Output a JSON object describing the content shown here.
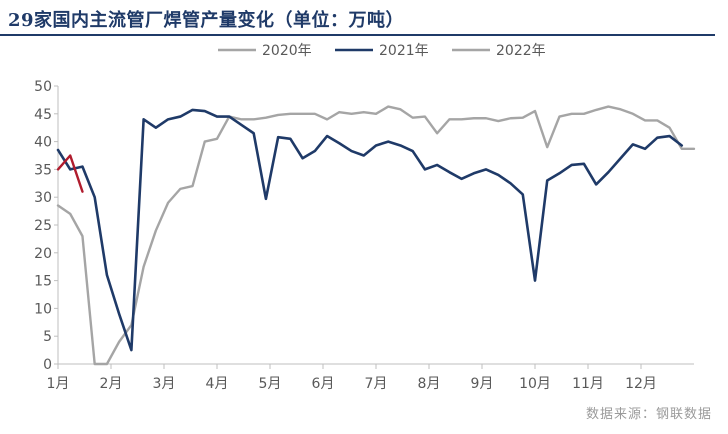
{
  "title": "29家国内主流管厂焊管产量变化（单位：万吨）",
  "source": "数据来源：钢联数据",
  "chart_data": {
    "type": "line",
    "ylim": [
      0,
      50
    ],
    "y_ticks": [
      "0",
      "5",
      "10",
      "15",
      "20",
      "25",
      "30",
      "35",
      "40",
      "45",
      "50"
    ],
    "x_labels": [
      "1月",
      "2月",
      "3月",
      "4月",
      "5月",
      "6月",
      "7月",
      "8月",
      "9月",
      "10月",
      "11月",
      "12月"
    ],
    "legend_position": "top",
    "series": [
      {
        "name": "2020年",
        "color": "#a5a5a5",
        "values": [
          28.5,
          27.0,
          23.0,
          0.0,
          0.0,
          4.0,
          7.0,
          17.5,
          24.0,
          29.0,
          31.5,
          32.0,
          40.0,
          40.5,
          44.5,
          44.0,
          44.0,
          44.3,
          44.8,
          45.0,
          45.0,
          45.0,
          44.0,
          45.3,
          45.0,
          45.3,
          45.0,
          46.3,
          45.8,
          44.3,
          44.5,
          41.5,
          44.0,
          44.0,
          44.2,
          44.2,
          43.7,
          44.2,
          44.3,
          45.5,
          39.0,
          44.5,
          45.0,
          45.0,
          45.7,
          46.3,
          45.8,
          45.0,
          43.8,
          43.8,
          42.5,
          38.7,
          38.7
        ]
      },
      {
        "name": "2021年",
        "color": "#1f3a68",
        "values": [
          38.5,
          35.0,
          35.5,
          30.0,
          16.0,
          9.0,
          2.5,
          44.0,
          42.5,
          44.0,
          44.5,
          45.7,
          45.5,
          44.5,
          44.5,
          43.0,
          41.5,
          29.7,
          40.8,
          40.5,
          37.0,
          38.3,
          41.0,
          39.7,
          38.3,
          37.5,
          39.3,
          40.0,
          39.3,
          38.3,
          35.0,
          35.8,
          34.5,
          33.3,
          34.3,
          35.0,
          34.0,
          32.5,
          30.5,
          15.0,
          33.0,
          34.3,
          35.8,
          36.0,
          32.3,
          34.5,
          37.0,
          39.5,
          38.7,
          40.7,
          41.0,
          39.3
        ]
      },
      {
        "name": "2022年",
        "color": "#b01c2e",
        "values": [
          35.0,
          37.5,
          31.0
        ]
      }
    ]
  }
}
